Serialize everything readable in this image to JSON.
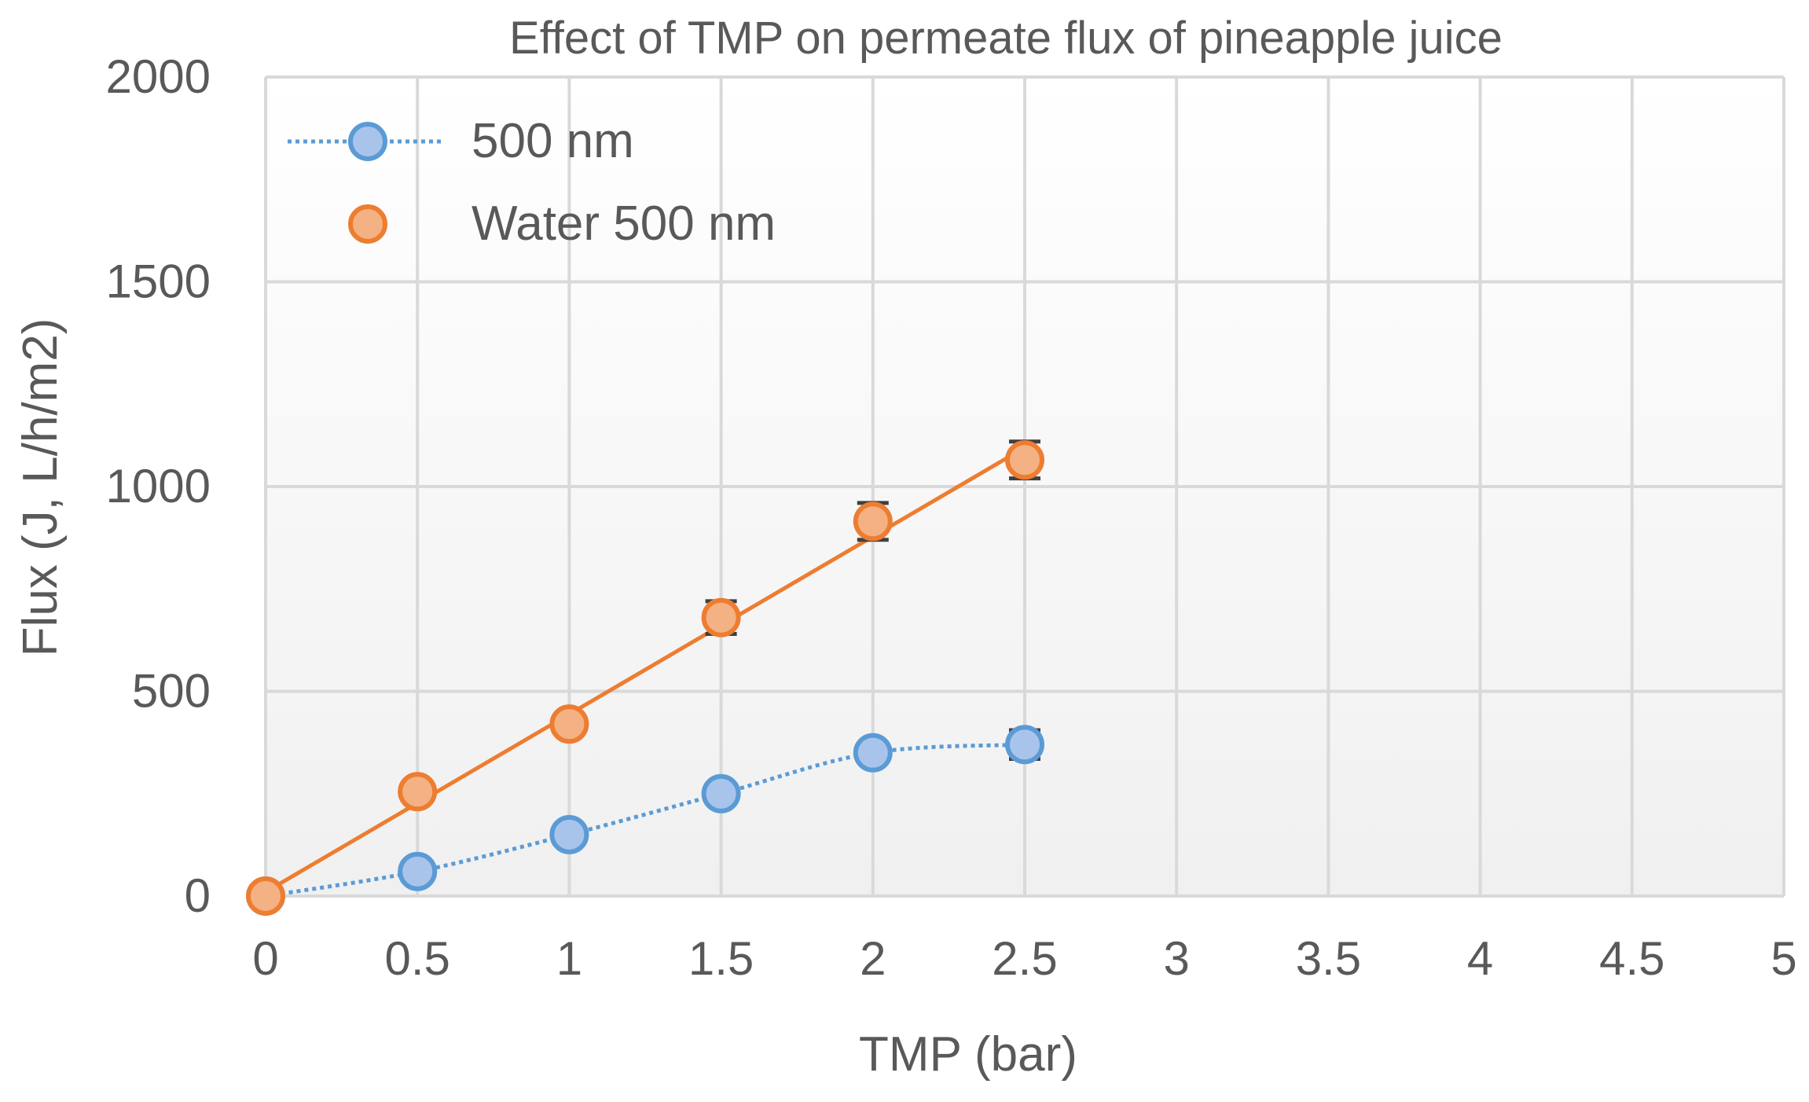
{
  "chart_data": {
    "type": "scatter",
    "title": "Effect of TMP on permeate flux of pineapple juice",
    "xlabel": "TMP (bar)",
    "ylabel": "Flux (J, L/h/m2)",
    "xlim": [
      0,
      5
    ],
    "ylim": [
      0,
      2000
    ],
    "xticks": [
      0,
      0.5,
      1,
      1.5,
      2,
      2.5,
      3,
      3.5,
      4,
      4.5,
      5
    ],
    "xtick_labels": [
      "0",
      "0.5",
      "1",
      "1.5",
      "2",
      "2.5",
      "3",
      "3.5",
      "4",
      "4.5",
      "5"
    ],
    "yticks": [
      0,
      500,
      1000,
      1500,
      2000
    ],
    "ytick_labels": [
      "0",
      "500",
      "1000",
      "1500",
      "2000"
    ],
    "grid": true,
    "legend_position": "top-left",
    "series": [
      {
        "name": "500 nm",
        "line_style": "dotted smooth",
        "color": "#5B9BD5",
        "fill": "#A9C4EB",
        "x": [
          0,
          0.5,
          1,
          1.5,
          2,
          2.5
        ],
        "y": [
          0,
          60,
          150,
          250,
          350,
          370
        ],
        "error": [
          0,
          0,
          0,
          0,
          0,
          35
        ]
      },
      {
        "name": "Water 500 nm",
        "line_style": "solid linear fit",
        "color": "#ED7D31",
        "fill": "#F4B183",
        "x": [
          0,
          0.5,
          1,
          1.5,
          2,
          2.5
        ],
        "y": [
          0,
          255,
          420,
          680,
          915,
          1065
        ],
        "error": [
          0,
          0,
          0,
          40,
          45,
          45
        ],
        "trendline": {
          "x": [
            0,
            2.5
          ],
          "y": [
            10,
            1095
          ]
        }
      }
    ]
  }
}
